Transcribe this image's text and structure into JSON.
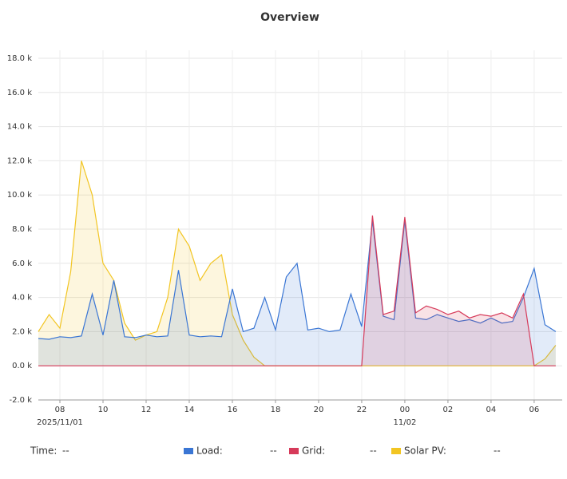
{
  "chart_data": {
    "type": "line",
    "title": "Overview",
    "x": [
      "2025/11/01 07:00",
      "2025/11/01 07:30",
      "2025/11/01 08:00",
      "2025/11/01 08:30",
      "2025/11/01 09:00",
      "2025/11/01 09:30",
      "2025/11/01 10:00",
      "2025/11/01 10:30",
      "2025/11/01 11:00",
      "2025/11/01 11:30",
      "2025/11/01 12:00",
      "2025/11/01 12:30",
      "2025/11/01 13:00",
      "2025/11/01 13:30",
      "2025/11/01 14:00",
      "2025/11/01 14:30",
      "2025/11/01 15:00",
      "2025/11/01 15:30",
      "2025/11/01 16:00",
      "2025/11/01 16:30",
      "2025/11/01 17:00",
      "2025/11/01 17:30",
      "2025/11/01 18:00",
      "2025/11/01 18:30",
      "2025/11/01 19:00",
      "2025/11/01 19:30",
      "2025/11/01 20:00",
      "2025/11/01 20:30",
      "2025/11/01 21:00",
      "2025/11/01 21:30",
      "2025/11/01 22:00",
      "2025/11/01 22:30",
      "2025/11/01 23:00",
      "2025/11/01 23:30",
      "2025/11/02 00:00",
      "2025/11/02 00:30",
      "2025/11/02 01:00",
      "2025/11/02 01:30",
      "2025/11/02 02:00",
      "2025/11/02 02:30",
      "2025/11/02 03:00",
      "2025/11/02 03:30",
      "2025/11/02 04:00",
      "2025/11/02 04:30",
      "2025/11/02 05:00",
      "2025/11/02 05:30",
      "2025/11/02 06:00",
      "2025/11/02 06:30",
      "2025/11/02 07:00"
    ],
    "series": [
      {
        "name": "Load:",
        "color": "#3a76d4",
        "values": [
          1600,
          1550,
          1700,
          1650,
          1750,
          4200,
          1800,
          5000,
          1700,
          1650,
          1800,
          1700,
          1750,
          5600,
          1800,
          1700,
          1750,
          1700,
          4500,
          2000,
          2200,
          4000,
          2100,
          5200,
          6000,
          2100,
          2200,
          2000,
          2100,
          4200,
          2300,
          8500,
          2900,
          2700,
          8500,
          2800,
          2700,
          3000,
          2800,
          2600,
          2700,
          2500,
          2800,
          2500,
          2600,
          4000,
          5700,
          2400,
          2000
        ]
      },
      {
        "name": "Grid:",
        "color": "#d63a5a",
        "values": [
          0,
          0,
          0,
          0,
          0,
          0,
          0,
          0,
          0,
          0,
          0,
          0,
          0,
          0,
          0,
          0,
          0,
          0,
          0,
          0,
          0,
          0,
          0,
          0,
          0,
          0,
          0,
          0,
          0,
          0,
          0,
          8800,
          3000,
          3200,
          8700,
          3100,
          3500,
          3300,
          3000,
          3200,
          2800,
          3000,
          2900,
          3100,
          2800,
          4200,
          0,
          0,
          0
        ]
      },
      {
        "name": "Solar PV:",
        "color": "#f2c522",
        "values": [
          2000,
          3000,
          2200,
          5500,
          12000,
          10000,
          6000,
          5000,
          2500,
          1500,
          1800,
          2000,
          4000,
          8000,
          7000,
          5000,
          6000,
          6500,
          3000,
          1500,
          500,
          0,
          0,
          0,
          0,
          0,
          0,
          0,
          0,
          0,
          0,
          0,
          0,
          0,
          0,
          0,
          0,
          0,
          0,
          0,
          0,
          0,
          0,
          0,
          0,
          0,
          0,
          400,
          1200
        ]
      }
    ],
    "xlim": [
      "2025/11/01 07:00",
      "2025/11/02 07:18"
    ],
    "xticks": [
      {
        "value": "2025/11/01 08:00",
        "label": "08",
        "sublabel": "2025/11/01"
      },
      {
        "value": "2025/11/01 10:00",
        "label": "10"
      },
      {
        "value": "2025/11/01 12:00",
        "label": "12"
      },
      {
        "value": "2025/11/01 14:00",
        "label": "14"
      },
      {
        "value": "2025/11/01 16:00",
        "label": "16"
      },
      {
        "value": "2025/11/01 18:00",
        "label": "18"
      },
      {
        "value": "2025/11/01 20:00",
        "label": "20"
      },
      {
        "value": "2025/11/01 22:00",
        "label": "22"
      },
      {
        "value": "2025/11/02 00:00",
        "label": "00",
        "sublabel": "11/02"
      },
      {
        "value": "2025/11/02 02:00",
        "label": "02"
      },
      {
        "value": "2025/11/02 04:00",
        "label": "04"
      },
      {
        "value": "2025/11/02 06:00",
        "label": "06"
      }
    ],
    "ylim": [
      -2000,
      18000
    ],
    "yticks": [
      {
        "value": -2000,
        "label": "-2.0 k"
      },
      {
        "value": 0,
        "label": "0.0 k"
      },
      {
        "value": 2000,
        "label": "2.0 k"
      },
      {
        "value": 4000,
        "label": "4.0 k"
      },
      {
        "value": 6000,
        "label": "6.0 k"
      },
      {
        "value": 8000,
        "label": "8.0 k"
      },
      {
        "value": 10000,
        "label": "10.0 k"
      },
      {
        "value": 12000,
        "label": "12.0 k"
      },
      {
        "value": 14000,
        "label": "14.0 k"
      },
      {
        "value": 16000,
        "label": "16.0 k"
      },
      {
        "value": 18000,
        "label": "18.0 k"
      }
    ],
    "grid": true,
    "legend": {
      "time_label": "Time:",
      "placeholder": "--"
    }
  }
}
